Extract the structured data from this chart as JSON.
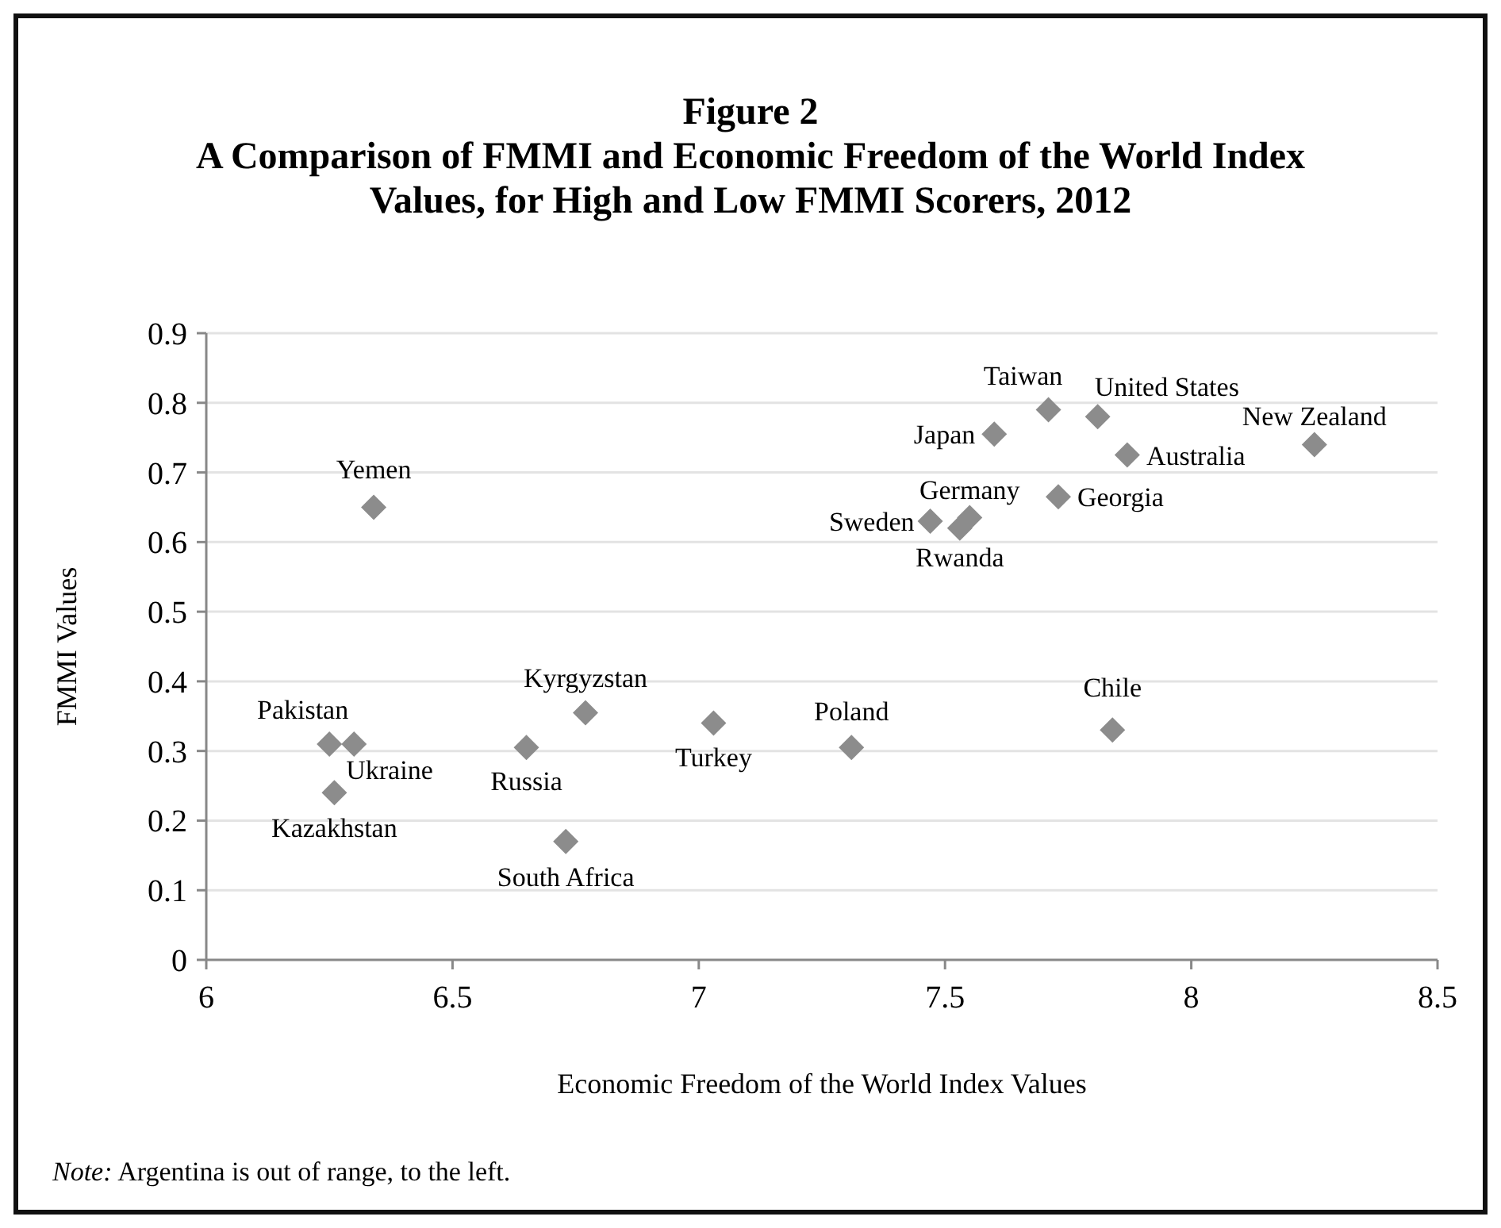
{
  "chart_data": {
    "type": "scatter",
    "title": "Figure 2\nA Comparison of FMMI and Economic Freedom of the World Index\nValues, for High and Low FMMI Scorers, 2012",
    "xlabel": "Economic Freedom of the World Index Values",
    "ylabel": "FMMI Values",
    "xlim": [
      6,
      8.5
    ],
    "xticks": [
      6,
      6.5,
      7,
      7.5,
      8,
      8.5
    ],
    "ylim": [
      0,
      0.9
    ],
    "yticks": [
      0,
      0.1,
      0.2,
      0.3,
      0.4,
      0.5,
      0.6,
      0.7,
      0.8,
      0.9
    ],
    "grid": "y",
    "marker": "diamond",
    "series": [
      {
        "color": "#8c8c8c",
        "x": [
          6.34,
          6.25,
          6.3,
          6.26,
          6.65,
          6.77,
          6.73,
          7.03,
          7.31,
          7.84,
          7.47,
          7.55,
          7.53,
          7.73,
          7.6,
          7.71,
          7.81,
          7.87,
          8.25
        ],
        "values": [
          0.65,
          0.31,
          0.31,
          0.24,
          0.305,
          0.355,
          0.17,
          0.34,
          0.305,
          0.33,
          0.63,
          0.635,
          0.62,
          0.665,
          0.755,
          0.79,
          0.78,
          0.725,
          0.74
        ]
      }
    ],
    "annotations": [
      {
        "text": "Yemen",
        "x": 6.34,
        "y": 0.65
      },
      {
        "text": "Pakistan",
        "x": 6.25,
        "y": 0.31
      },
      {
        "text": "Ukraine",
        "x": 6.3,
        "y": 0.31
      },
      {
        "text": "Kazakhstan",
        "x": 6.26,
        "y": 0.24
      },
      {
        "text": "Russia",
        "x": 6.65,
        "y": 0.305
      },
      {
        "text": "Kyrgyzstan",
        "x": 6.77,
        "y": 0.355
      },
      {
        "text": "South Africa",
        "x": 6.73,
        "y": 0.17
      },
      {
        "text": "Turkey",
        "x": 7.03,
        "y": 0.34
      },
      {
        "text": "Poland",
        "x": 7.31,
        "y": 0.305
      },
      {
        "text": "Chile",
        "x": 7.84,
        "y": 0.33
      },
      {
        "text": "Sweden",
        "x": 7.47,
        "y": 0.63
      },
      {
        "text": "Germany",
        "x": 7.55,
        "y": 0.635
      },
      {
        "text": "Rwanda",
        "x": 7.53,
        "y": 0.62
      },
      {
        "text": "Georgia",
        "x": 7.73,
        "y": 0.665
      },
      {
        "text": "Japan",
        "x": 7.6,
        "y": 0.755
      },
      {
        "text": "Taiwan",
        "x": 7.71,
        "y": 0.79
      },
      {
        "text": "United States",
        "x": 7.81,
        "y": 0.78
      },
      {
        "text": "Australia",
        "x": 7.87,
        "y": 0.725
      },
      {
        "text": "New Zealand",
        "x": 8.25,
        "y": 0.74
      },
      "Note: Argentina is out of range, to the left."
    ]
  }
}
